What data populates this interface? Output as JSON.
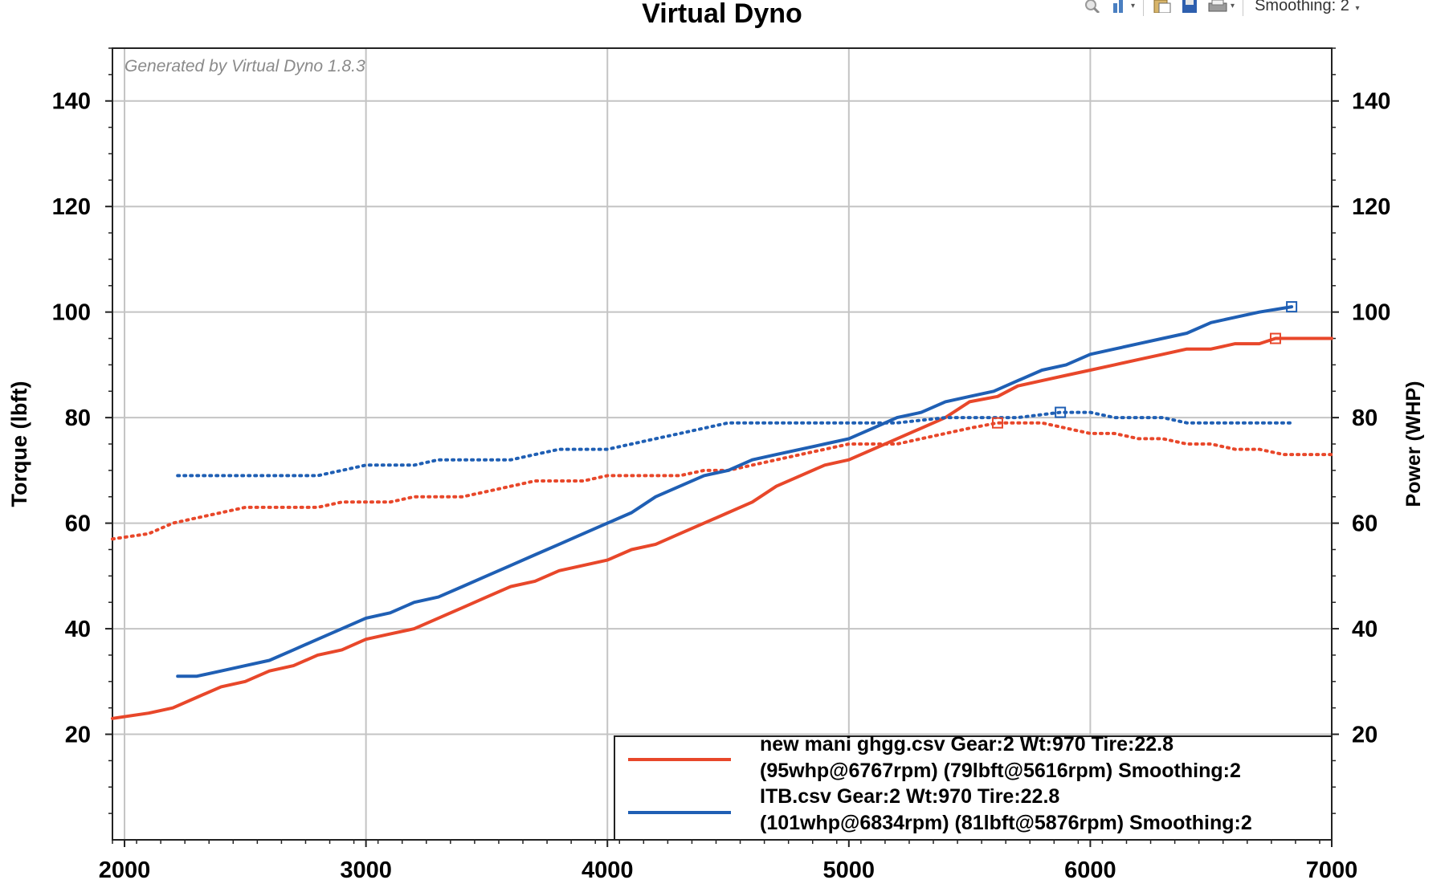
{
  "toolbar": {
    "smoothing_label": "Smoothing: 2",
    "icons": [
      "magnifier-icon",
      "column-chart-icon",
      "clipboard-icon",
      "save-disk-icon",
      "print-icon"
    ]
  },
  "chart_data": {
    "type": "line",
    "title": "Virtual Dyno",
    "watermark": "Generated by Virtual Dyno 1.8.3",
    "xlabel": "",
    "ylabel_left": "Torque (lbft)",
    "ylabel_right": "Power (WHP)",
    "xlim": [
      1950,
      7000
    ],
    "ylim_left": [
      0,
      150
    ],
    "ylim_right": [
      0,
      150
    ],
    "x_ticks": [
      2000,
      3000,
      4000,
      5000,
      6000,
      7000
    ],
    "y_ticks": [
      20,
      40,
      60,
      80,
      100,
      120,
      140
    ],
    "grid": true,
    "legend_position": "bottom-right",
    "series": [
      {
        "name": "new mani ghgg.csv",
        "color": "#e8472a",
        "measure": "power",
        "style": "solid",
        "x": [
          1950,
          2100,
          2200,
          2300,
          2400,
          2500,
          2600,
          2700,
          2800,
          2900,
          3000,
          3100,
          3200,
          3300,
          3400,
          3500,
          3600,
          3700,
          3800,
          3900,
          4000,
          4100,
          4200,
          4300,
          4400,
          4500,
          4600,
          4700,
          4800,
          4900,
          5000,
          5100,
          5200,
          5300,
          5400,
          5500,
          5616,
          5700,
          5800,
          5900,
          6000,
          6100,
          6200,
          6300,
          6400,
          6500,
          6600,
          6700,
          6767,
          6850,
          7000
        ],
        "values": [
          23,
          24,
          25,
          27,
          29,
          30,
          32,
          33,
          35,
          36,
          38,
          39,
          40,
          42,
          44,
          46,
          48,
          49,
          51,
          52,
          53,
          55,
          56,
          58,
          60,
          62,
          64,
          67,
          69,
          71,
          72,
          74,
          76,
          78,
          80,
          83,
          84,
          86,
          87,
          88,
          89,
          90,
          91,
          92,
          93,
          93,
          94,
          94,
          95,
          95,
          95
        ],
        "legend_lines": [
          "new mani ghgg.csv Gear:2 Wt:970 Tire:22.8",
          "(95whp@6767rpm) (79lbft@5616rpm) Smoothing:2"
        ]
      },
      {
        "name": "new mani ghgg.csv",
        "color": "#e8472a",
        "measure": "torque",
        "style": "dotted",
        "x": [
          1950,
          2100,
          2200,
          2300,
          2400,
          2500,
          2600,
          2700,
          2800,
          2900,
          3000,
          3100,
          3200,
          3300,
          3400,
          3500,
          3600,
          3700,
          3800,
          3900,
          4000,
          4100,
          4200,
          4300,
          4400,
          4500,
          4600,
          4700,
          4800,
          4900,
          5000,
          5100,
          5200,
          5300,
          5400,
          5500,
          5616,
          5700,
          5800,
          5900,
          6000,
          6100,
          6200,
          6300,
          6400,
          6500,
          6600,
          6700,
          6800,
          6900,
          7000
        ],
        "values": [
          57,
          58,
          60,
          61,
          62,
          63,
          63,
          63,
          63,
          64,
          64,
          64,
          65,
          65,
          65,
          66,
          67,
          68,
          68,
          68,
          69,
          69,
          69,
          69,
          70,
          70,
          71,
          72,
          73,
          74,
          75,
          75,
          75,
          76,
          77,
          78,
          79,
          79,
          79,
          78,
          77,
          77,
          76,
          76,
          75,
          75,
          74,
          74,
          73,
          73,
          73
        ]
      },
      {
        "name": "ITB.csv",
        "color": "#1f5fb4",
        "measure": "power",
        "style": "solid",
        "x": [
          2220,
          2300,
          2400,
          2500,
          2600,
          2700,
          2800,
          2900,
          3000,
          3100,
          3200,
          3300,
          3400,
          3500,
          3600,
          3700,
          3800,
          3900,
          4000,
          4100,
          4200,
          4300,
          4400,
          4500,
          4600,
          4700,
          4800,
          4900,
          5000,
          5100,
          5200,
          5300,
          5400,
          5500,
          5600,
          5700,
          5800,
          5900,
          6000,
          6100,
          6200,
          6300,
          6400,
          6500,
          6600,
          6700,
          6834
        ],
        "values": [
          31,
          31,
          32,
          33,
          34,
          36,
          38,
          40,
          42,
          43,
          45,
          46,
          48,
          50,
          52,
          54,
          56,
          58,
          60,
          62,
          65,
          67,
          69,
          70,
          72,
          73,
          74,
          75,
          76,
          78,
          80,
          81,
          83,
          84,
          85,
          87,
          89,
          90,
          92,
          93,
          94,
          95,
          96,
          98,
          99,
          100,
          101
        ]
      },
      {
        "name": "ITB.csv",
        "color": "#1f5fb4",
        "measure": "torque",
        "style": "dotted",
        "x": [
          2220,
          2400,
          2600,
          2800,
          2900,
          3000,
          3200,
          3300,
          3500,
          3600,
          3700,
          3800,
          3900,
          4000,
          4100,
          4200,
          4300,
          4400,
          4500,
          4700,
          5000,
          5200,
          5400,
          5600,
          5700,
          5876,
          6000,
          6100,
          6200,
          6300,
          6400,
          6500,
          6600,
          6700,
          6834
        ],
        "values": [
          69,
          69,
          69,
          69,
          70,
          71,
          71,
          72,
          72,
          72,
          73,
          74,
          74,
          74,
          75,
          76,
          77,
          78,
          79,
          79,
          79,
          79,
          80,
          80,
          80,
          81,
          81,
          80,
          80,
          80,
          79,
          79,
          79,
          79,
          79
        ],
        "legend_lines": [
          "ITB.csv Gear:2 Wt:970 Tire:22.8",
          "(101whp@6834rpm) (81lbft@5876rpm) Smoothing:2"
        ]
      }
    ],
    "peak_markers": [
      {
        "series": "new mani ghgg.csv",
        "measure": "power",
        "x": 6767,
        "y": 95
      },
      {
        "series": "new mani ghgg.csv",
        "measure": "torque",
        "x": 5616,
        "y": 79
      },
      {
        "series": "ITB.csv",
        "measure": "power",
        "x": 6834,
        "y": 101
      },
      {
        "series": "ITB.csv",
        "measure": "torque",
        "x": 5876,
        "y": 81
      }
    ]
  }
}
